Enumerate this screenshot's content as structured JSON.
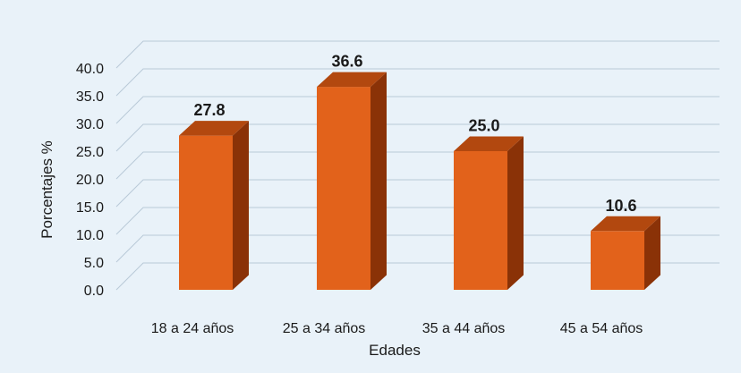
{
  "chart_data": {
    "type": "bar",
    "style": "3d-column",
    "categories": [
      "18 a 24 años",
      "25 a 34 años",
      "35 a 44 años",
      "45 a 54 años"
    ],
    "values": [
      27.8,
      36.6,
      25.0,
      10.6
    ],
    "data_labels": [
      "27.8",
      "36.6",
      "25.0",
      "10.6"
    ],
    "y_ticks": [
      "0.0",
      "5.0",
      "10.0",
      "15.0",
      "20.0",
      "25.0",
      "30.0",
      "35.0",
      "40.0"
    ],
    "ylim": [
      0,
      40
    ],
    "xlabel": "Edades",
    "ylabel": "Porcentajes %",
    "grid": true,
    "legend": "none",
    "colors": {
      "bar_front": "#e2621b",
      "bar_side": "#8a3207",
      "bar_top": "#b2480f",
      "background": "#e9f2f9",
      "grid": "#b9c9d8"
    }
  }
}
